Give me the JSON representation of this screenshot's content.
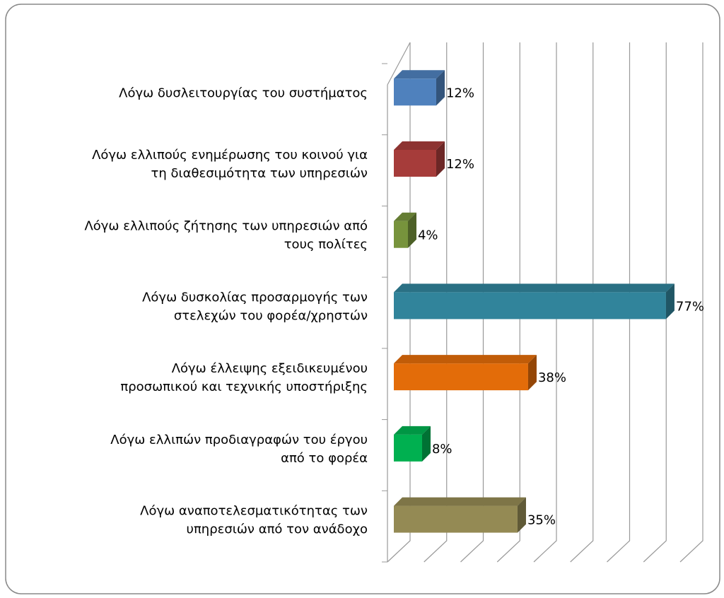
{
  "chart_data": {
    "type": "bar3d-horizontal",
    "categories": [
      "Λόγω δυσλειτουργίας του συστήματος",
      "Λόγω ελλιπούς ενημέρωσης του κοινού για\nτη διαθεσιμότητα των υπηρεσιών",
      "Λόγω ελλιπούς ζήτησης των υπηρεσιών από\nτους πολίτες",
      "Λόγω δυσκολίας προσαρμογής των\nστελεχών του φορέα/χρηστών",
      "Λόγω έλλειψης εξειδικευμένου\nπροσωπικού και τεχνικής υποστήριξης",
      "Λόγω ελλιπών  προδιαγραφών του έργου\nαπό το φορέα",
      "Λόγω αναποτελεσματικότητας  των\nυπηρεσιών από τον ανάδοχο"
    ],
    "values": [
      12,
      12,
      4,
      77,
      38,
      8,
      35
    ],
    "value_labels": [
      "12%",
      "12%",
      "4%",
      "77%",
      "38%",
      "8%",
      "35%"
    ],
    "colors": [
      "#4f81bd",
      "#a63c3a",
      "#77933c",
      "#31849b",
      "#e36c09",
      "#00b050",
      "#948a54"
    ],
    "xlim": [
      0,
      80
    ],
    "xticks": [
      0,
      10,
      20,
      30,
      40,
      50,
      60,
      70,
      80
    ],
    "grid": true
  }
}
